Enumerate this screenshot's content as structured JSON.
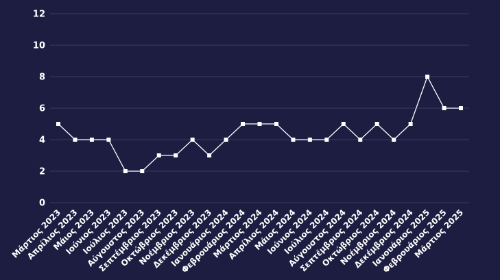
{
  "chart_data": {
    "type": "line",
    "title": "",
    "xlabel": "",
    "ylabel": "",
    "ylim": [
      0,
      12
    ],
    "yticks": [
      "0",
      "2",
      "4",
      "6",
      "8",
      "10",
      "12"
    ],
    "grid": true,
    "legend": "none",
    "colors": {
      "background": "#1d1d42",
      "line": "#ffffff",
      "grid": "#3a3a63",
      "text": "#ffffff"
    },
    "categories": [
      "Μάρτιος 2023",
      "Απρίλιος 2023",
      "Μάιος 2023",
      "Ιούνιος 2023",
      "Ιούλιος 2023",
      "Αύγουστος 2023",
      "Σεπτέμβριος 2023",
      "Οκτώβριος 2023",
      "Νοέμβριος 2023",
      "Δεκέμβριος 2023",
      "Ιανουάριος 2024",
      "Φεβρουάριος 2024",
      "Μάρτιος 2024",
      "Απρίλιος 2024",
      "Μάιος 2024",
      "Ιούνιος 2024",
      "Ιούλιος 2024",
      "Αύγουστος 2024",
      "Σεπτέμβριος 2024",
      "Οκτώβριος 2024",
      "Νοέμβριος 2024",
      "Δεκέμβριος 2024",
      "Ιανουάριος 2025",
      "Φεβρουάριος 2025",
      "Μάρτιος 2025"
    ],
    "series": [
      {
        "values": [
          5,
          4,
          4,
          4,
          2,
          2,
          3,
          3,
          4,
          3,
          4,
          5,
          5,
          5,
          4,
          4,
          4,
          5,
          4,
          5,
          4,
          5,
          8,
          6,
          6
        ]
      }
    ]
  }
}
